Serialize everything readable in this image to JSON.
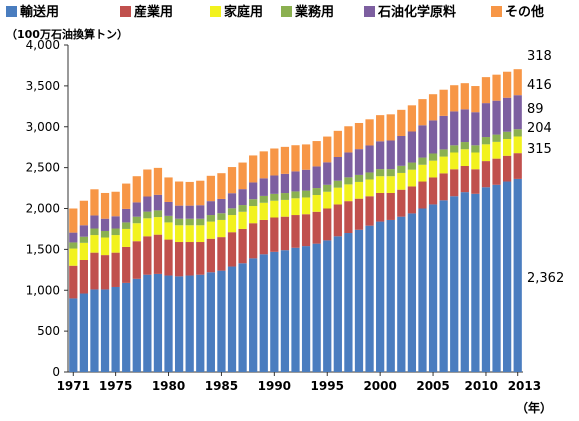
{
  "chart_data": {
    "type": "bar",
    "stacked": true,
    "unit_label": "（100万石油換算トン）",
    "x_suffix_label": "（年）",
    "ylim": [
      0,
      4000
    ],
    "y_ticks": [
      "0",
      "500",
      "1,000",
      "1,500",
      "2,000",
      "2,500",
      "3,000",
      "3,500",
      "4,000"
    ],
    "x_tick_labels": [
      "1971",
      "1975",
      "1980",
      "1985",
      "1990",
      "1995",
      "2000",
      "2005",
      "2010",
      "2013"
    ],
    "grid": false,
    "legend_position": "top",
    "categories": [
      1971,
      1972,
      1973,
      1974,
      1975,
      1976,
      1977,
      1978,
      1979,
      1980,
      1981,
      1982,
      1983,
      1984,
      1985,
      1986,
      1987,
      1988,
      1989,
      1990,
      1991,
      1992,
      1993,
      1994,
      1995,
      1996,
      1997,
      1998,
      1999,
      2000,
      2001,
      2002,
      2003,
      2004,
      2005,
      2006,
      2007,
      2008,
      2009,
      2010,
      2011,
      2012,
      2013
    ],
    "series": [
      {
        "name": "輸送用",
        "color": "#4a7dbf",
        "values": [
          900,
          960,
          1010,
          1010,
          1040,
          1090,
          1140,
          1190,
          1200,
          1180,
          1170,
          1180,
          1190,
          1220,
          1240,
          1290,
          1330,
          1390,
          1440,
          1470,
          1490,
          1520,
          1540,
          1570,
          1610,
          1660,
          1700,
          1740,
          1790,
          1840,
          1860,
          1900,
          1940,
          2000,
          2050,
          2100,
          2150,
          2200,
          2180,
          2260,
          2290,
          2330,
          2362
        ]
      },
      {
        "name": "産業用",
        "color": "#c0504d",
        "values": [
          400,
          410,
          450,
          420,
          420,
          440,
          460,
          470,
          480,
          440,
          420,
          410,
          400,
          410,
          410,
          420,
          420,
          430,
          420,
          420,
          410,
          400,
          390,
          390,
          390,
          390,
          390,
          380,
          360,
          350,
          330,
          330,
          330,
          330,
          330,
          330,
          330,
          320,
          300,
          320,
          320,
          315,
          315
        ]
      },
      {
        "name": "家庭用",
        "color": "#f2f21e",
        "values": [
          210,
          210,
          215,
          215,
          215,
          220,
          220,
          220,
          215,
          210,
          205,
          205,
          205,
          210,
          210,
          210,
          210,
          210,
          210,
          205,
          205,
          205,
          205,
          205,
          205,
          205,
          205,
          205,
          205,
          205,
          205,
          205,
          205,
          205,
          205,
          205,
          205,
          205,
          205,
          205,
          205,
          205,
          204
        ]
      },
      {
        "name": "業務用",
        "color": "#8bb050",
        "values": [
          75,
          75,
          80,
          80,
          80,
          80,
          80,
          82,
          82,
          80,
          80,
          80,
          80,
          80,
          82,
          82,
          82,
          84,
          84,
          84,
          84,
          84,
          84,
          85,
          85,
          85,
          86,
          86,
          86,
          87,
          87,
          87,
          87,
          88,
          88,
          88,
          88,
          88,
          88,
          89,
          89,
          89,
          89
        ]
      },
      {
        "name": "石油化学原料",
        "color": "#7d5fa0",
        "values": [
          120,
          140,
          160,
          150,
          150,
          165,
          175,
          185,
          190,
          170,
          160,
          160,
          165,
          170,
          175,
          185,
          195,
          205,
          215,
          225,
          235,
          245,
          255,
          265,
          275,
          290,
          305,
          315,
          330,
          340,
          350,
          365,
          380,
          395,
          405,
          410,
          415,
          400,
          405,
          415,
          415,
          416,
          416
        ]
      },
      {
        "name": "その他",
        "color": "#f79646",
        "values": [
          295,
          300,
          320,
          315,
          300,
          310,
          320,
          330,
          330,
          300,
          295,
          290,
          300,
          310,
          315,
          320,
          325,
          330,
          330,
          330,
          330,
          320,
          310,
          310,
          315,
          320,
          320,
          320,
          320,
          320,
          320,
          320,
          320,
          320,
          320,
          320,
          320,
          320,
          320,
          318,
          318,
          318,
          318
        ]
      }
    ],
    "end_labels": [
      "318",
      "416",
      "89",
      "204",
      "315",
      "2,362"
    ]
  }
}
